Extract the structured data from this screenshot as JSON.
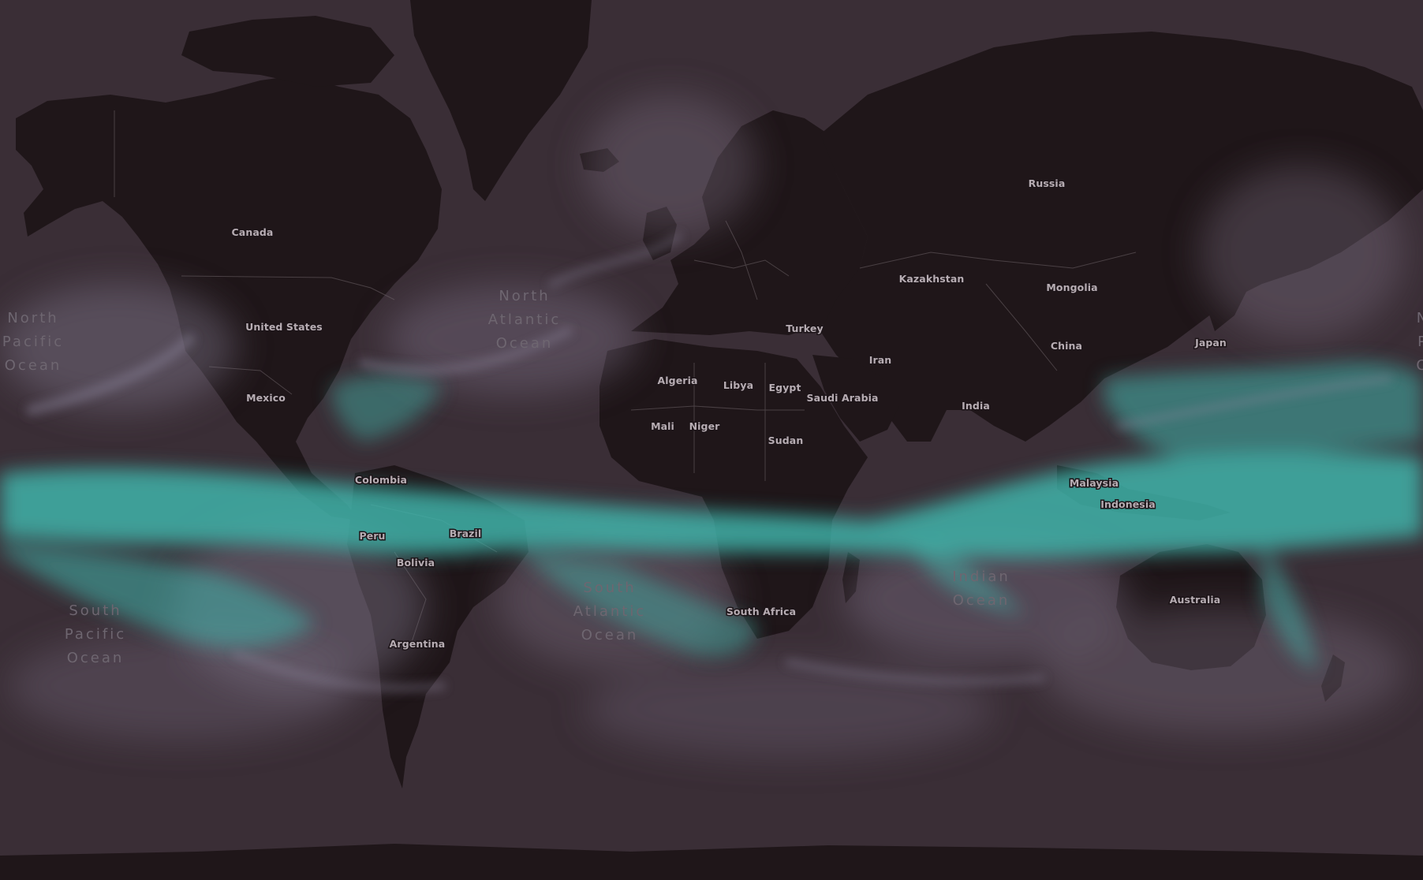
{
  "map": {
    "style": {
      "ocean_color": "#3a2e36",
      "land_color": "#1f1619",
      "border_color": "#6e6468",
      "jet_color": "#3fb3a9",
      "cloud_color": "#7d7488",
      "label_color": "#b7adb3",
      "ocean_label_color": "#6e6670"
    },
    "country_labels": [
      {
        "key": "canada",
        "text": "Canada"
      },
      {
        "key": "united-states",
        "text": "United States"
      },
      {
        "key": "mexico",
        "text": "Mexico"
      },
      {
        "key": "colombia",
        "text": "Colombia"
      },
      {
        "key": "peru",
        "text": "Peru"
      },
      {
        "key": "brazil",
        "text": "Brazil"
      },
      {
        "key": "bolivia",
        "text": "Bolivia"
      },
      {
        "key": "argentina",
        "text": "Argentina"
      },
      {
        "key": "russia",
        "text": "Russia"
      },
      {
        "key": "kazakhstan",
        "text": "Kazakhstan"
      },
      {
        "key": "mongolia",
        "text": "Mongolia"
      },
      {
        "key": "china",
        "text": "China"
      },
      {
        "key": "japan",
        "text": "Japan"
      },
      {
        "key": "turkey",
        "text": "Turkey"
      },
      {
        "key": "iran",
        "text": "Iran"
      },
      {
        "key": "india",
        "text": "India"
      },
      {
        "key": "algeria",
        "text": "Algeria"
      },
      {
        "key": "libya",
        "text": "Libya"
      },
      {
        "key": "egypt",
        "text": "Egypt"
      },
      {
        "key": "saudi-arabia",
        "text": "Saudi Arabia"
      },
      {
        "key": "mali",
        "text": "Mali"
      },
      {
        "key": "niger",
        "text": "Niger"
      },
      {
        "key": "sudan",
        "text": "Sudan"
      },
      {
        "key": "malaysia",
        "text": "Malaysia"
      },
      {
        "key": "indonesia",
        "text": "Indonesia"
      },
      {
        "key": "south-africa",
        "text": "South Africa"
      },
      {
        "key": "australia",
        "text": "Australia"
      }
    ],
    "ocean_labels": [
      {
        "key": "north-pacific-west",
        "lines": [
          "North",
          "Pacific",
          "Ocean"
        ]
      },
      {
        "key": "north-atlantic",
        "lines": [
          "North",
          "Atlantic",
          "Ocean"
        ]
      },
      {
        "key": "south-pacific",
        "lines": [
          "South",
          "Pacific",
          "Ocean"
        ]
      },
      {
        "key": "south-atlantic",
        "lines": [
          "South",
          "Atlantic",
          "Ocean"
        ]
      },
      {
        "key": "indian",
        "lines": [
          "Indian",
          "Ocean"
        ]
      },
      {
        "key": "north-pacific-east",
        "lines": [
          "N",
          "P",
          "O"
        ]
      }
    ]
  }
}
